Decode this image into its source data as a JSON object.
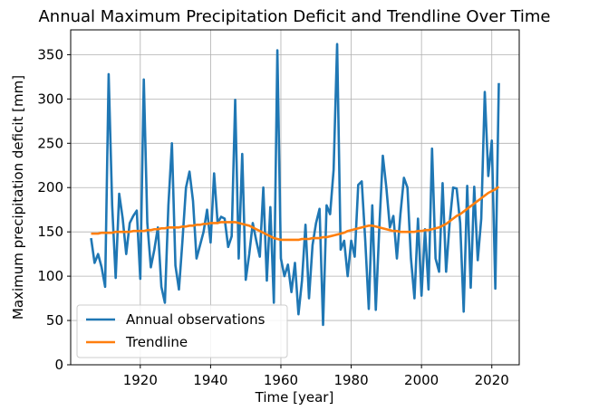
{
  "chart_data": {
    "type": "line",
    "title": "Annual Maximum Precipitation Deficit and Trendline Over Time",
    "x_label": "Time [year]",
    "y_label": "Maximum precipitation deficit [mm]",
    "x": [
      1906,
      1907,
      1908,
      1909,
      1910,
      1911,
      1912,
      1913,
      1914,
      1915,
      1916,
      1917,
      1918,
      1919,
      1920,
      1921,
      1922,
      1923,
      1924,
      1925,
      1926,
      1927,
      1928,
      1929,
      1930,
      1931,
      1932,
      1933,
      1934,
      1935,
      1936,
      1937,
      1938,
      1939,
      1940,
      1941,
      1942,
      1943,
      1944,
      1945,
      1946,
      1947,
      1948,
      1949,
      1950,
      1951,
      1952,
      1953,
      1954,
      1955,
      1956,
      1957,
      1958,
      1959,
      1960,
      1961,
      1962,
      1963,
      1964,
      1965,
      1966,
      1967,
      1968,
      1969,
      1970,
      1971,
      1972,
      1973,
      1974,
      1975,
      1976,
      1977,
      1978,
      1979,
      1980,
      1981,
      1982,
      1983,
      1984,
      1985,
      1986,
      1987,
      1988,
      1989,
      1990,
      1991,
      1992,
      1993,
      1994,
      1995,
      1996,
      1997,
      1998,
      1999,
      2000,
      2001,
      2002,
      2003,
      2004,
      2005,
      2006,
      2007,
      2008,
      2009,
      2010,
      2011,
      2012,
      2013,
      2014,
      2015,
      2016,
      2017,
      2018,
      2019,
      2020,
      2021,
      2022
    ],
    "series": [
      {
        "name": "Annual observations",
        "color": "#1f77b4",
        "values": [
          143,
          115,
          125,
          110,
          88,
          328,
          180,
          98,
          193,
          165,
          125,
          160,
          168,
          174,
          97,
          322,
          160,
          110,
          130,
          155,
          88,
          70,
          180,
          250,
          112,
          85,
          140,
          200,
          218,
          185,
          120,
          135,
          150,
          175,
          138,
          216,
          160,
          167,
          165,
          133,
          145,
          299,
          120,
          238,
          96,
          125,
          160,
          140,
          122,
          200,
          95,
          178,
          70,
          355,
          120,
          100,
          113,
          82,
          115,
          57,
          95,
          158,
          75,
          135,
          160,
          176,
          45,
          180,
          170,
          220,
          362,
          130,
          140,
          100,
          140,
          122,
          203,
          207,
          140,
          63,
          180,
          62,
          155,
          236,
          200,
          155,
          168,
          120,
          170,
          211,
          200,
          120,
          75,
          165,
          78,
          153,
          85,
          244,
          120,
          105,
          205,
          105,
          160,
          200,
          199,
          160,
          60,
          202,
          87,
          201,
          118,
          165,
          308,
          213,
          253,
          86,
          318
        ]
      },
      {
        "name": "Trendline",
        "color": "#ff7f0e",
        "values": [
          148,
          148,
          148,
          149,
          149,
          149,
          149,
          150,
          150,
          150,
          150,
          150,
          151,
          151,
          151,
          151,
          152,
          152,
          153,
          153,
          154,
          154,
          155,
          155,
          155,
          155,
          156,
          156,
          157,
          157,
          158,
          158,
          159,
          159,
          160,
          160,
          160,
          161,
          161,
          161,
          161,
          161,
          160,
          159,
          158,
          157,
          155,
          153,
          151,
          149,
          147,
          145,
          143,
          142,
          141,
          141,
          141,
          141,
          141,
          141,
          142,
          142,
          142,
          143,
          143,
          143,
          144,
          144,
          145,
          146,
          147,
          148,
          149,
          151,
          152,
          153,
          154,
          155,
          156,
          157,
          157,
          156,
          155,
          154,
          153,
          152,
          151,
          151,
          150,
          150,
          150,
          150,
          150,
          151,
          151,
          152,
          152,
          153,
          154,
          155,
          157,
          159,
          162,
          165,
          168,
          170,
          173,
          176,
          179,
          182,
          185,
          188,
          191,
          194,
          196,
          198,
          201
        ]
      }
    ],
    "xlim": [
      1900.2,
      2027.8
    ],
    "ylim": [
      0,
      378
    ],
    "xticks": [
      1920,
      1940,
      1960,
      1980,
      2000,
      2020
    ],
    "yticks": [
      0,
      50,
      100,
      150,
      200,
      250,
      300,
      350
    ],
    "grid": true,
    "legend": "lower left"
  }
}
